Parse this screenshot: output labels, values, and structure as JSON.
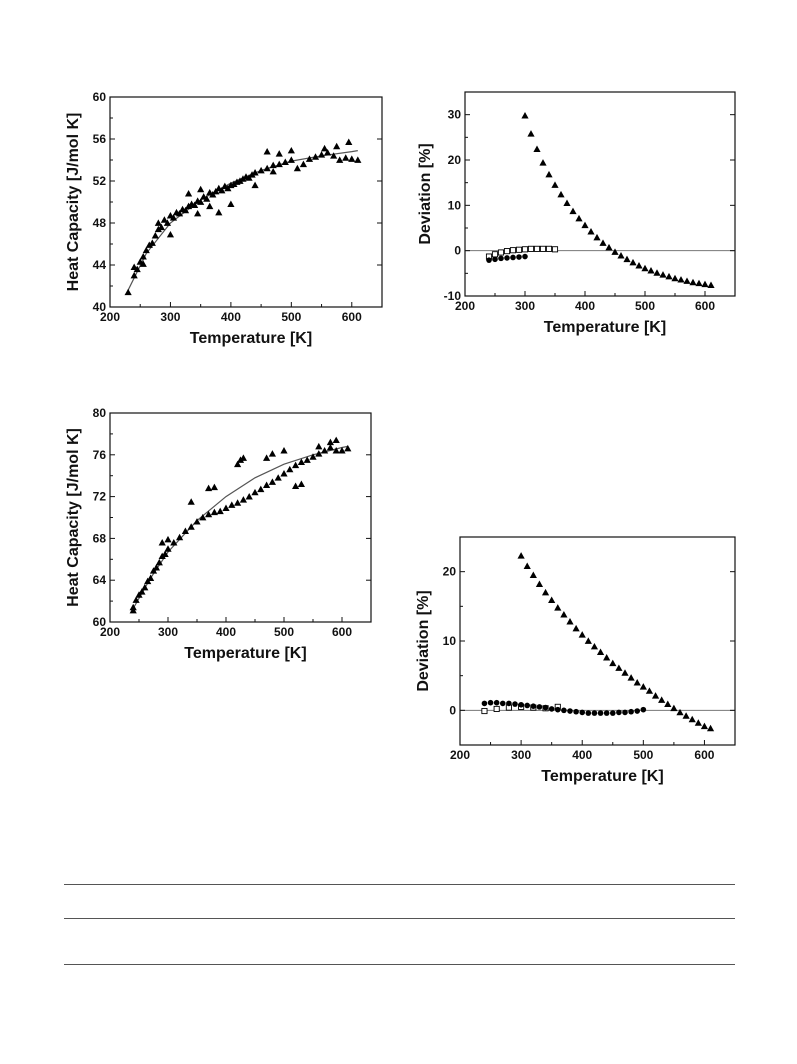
{
  "chart_data": [
    {
      "type": "scatter",
      "xlabel": "Temperature [K]",
      "ylabel": "Heat Capacity [J/mol K]",
      "xlim": [
        200,
        650
      ],
      "ylim": [
        40,
        60
      ],
      "xticks": [
        200,
        300,
        400,
        500,
        600
      ],
      "yticks": [
        40,
        44,
        48,
        52,
        56,
        60
      ],
      "series": [
        {
          "marker": "triangle",
          "x": [
            230,
            240,
            240,
            245,
            250,
            255,
            255,
            260,
            265,
            270,
            275,
            280,
            280,
            285,
            290,
            295,
            300,
            305,
            310,
            315,
            320,
            325,
            330,
            335,
            340,
            345,
            350,
            355,
            360,
            365,
            370,
            375,
            380,
            385,
            390,
            395,
            400,
            405,
            410,
            415,
            420,
            425,
            430,
            435,
            440,
            450,
            460,
            470,
            480,
            490,
            500,
            510,
            520,
            530,
            540,
            550,
            560,
            570,
            580,
            590,
            600,
            610,
            330,
            380,
            440,
            470,
            350,
            365,
            400,
            300,
            345,
            555,
            575,
            595,
            460,
            480,
            500
          ],
          "y": [
            41.4,
            43.0,
            43.8,
            43.6,
            44.3,
            44.1,
            44.8,
            45.4,
            45.9,
            46.1,
            46.8,
            47.4,
            48.0,
            47.6,
            48.3,
            48.0,
            48.7,
            48.5,
            49.0,
            48.9,
            49.3,
            49.2,
            49.6,
            49.8,
            49.7,
            50.1,
            50.0,
            50.5,
            50.3,
            50.9,
            50.7,
            51.0,
            51.3,
            51.1,
            51.5,
            51.3,
            51.6,
            51.7,
            51.9,
            52.0,
            52.2,
            52.4,
            52.3,
            52.6,
            52.8,
            53.0,
            53.2,
            53.5,
            53.6,
            53.8,
            54.0,
            53.2,
            53.6,
            54.1,
            54.3,
            54.5,
            54.7,
            54.4,
            54.0,
            54.2,
            54.1,
            54.0,
            50.8,
            49.0,
            51.6,
            52.9,
            51.2,
            49.6,
            49.8,
            46.9,
            48.9,
            55.1,
            55.3,
            55.7,
            54.8,
            54.6,
            54.9
          ]
        }
      ],
      "fit": {
        "x": [
          230,
          260,
          300,
          350,
          400,
          450,
          500,
          550,
          600,
          610
        ],
        "y": [
          41.6,
          45.1,
          48.0,
          50.2,
          51.8,
          53.0,
          53.9,
          54.4,
          54.8,
          54.9
        ]
      }
    },
    {
      "type": "scatter",
      "xlabel": "Temperature [K]",
      "ylabel": "Deviation [%]",
      "xlim": [
        200,
        650
      ],
      "ylim": [
        -10,
        35
      ],
      "xticks": [
        200,
        300,
        400,
        500,
        600
      ],
      "yticks": [
        -10,
        0,
        10,
        20,
        30
      ],
      "zero_line": true,
      "series": [
        {
          "marker": "triangle",
          "x": [
            300,
            310,
            320,
            330,
            340,
            350,
            360,
            370,
            380,
            390,
            400,
            410,
            420,
            430,
            440,
            450,
            460,
            470,
            480,
            490,
            500,
            510,
            520,
            530,
            540,
            550,
            560,
            570,
            580,
            590,
            600,
            610
          ],
          "y": [
            29.8,
            25.8,
            22.4,
            19.4,
            16.8,
            14.5,
            12.4,
            10.5,
            8.7,
            7.1,
            5.6,
            4.2,
            2.9,
            1.7,
            0.7,
            -0.3,
            -1.1,
            -1.9,
            -2.6,
            -3.3,
            -3.9,
            -4.4,
            -4.9,
            -5.3,
            -5.7,
            -6.1,
            -6.4,
            -6.7,
            -7.0,
            -7.2,
            -7.4,
            -7.6
          ]
        },
        {
          "marker": "open-square",
          "x": [
            240,
            250,
            260,
            270,
            280,
            290,
            300,
            310,
            320,
            330,
            340,
            350
          ],
          "y": [
            -1.3,
            -0.8,
            -0.4,
            -0.1,
            0.1,
            0.2,
            0.3,
            0.4,
            0.4,
            0.4,
            0.4,
            0.3
          ]
        },
        {
          "marker": "filled-circle",
          "x": [
            240,
            250,
            260,
            270,
            280,
            290,
            300
          ],
          "y": [
            -2.1,
            -1.9,
            -1.7,
            -1.6,
            -1.5,
            -1.4,
            -1.3
          ]
        }
      ]
    },
    {
      "type": "scatter",
      "xlabel": "Temperature [K]",
      "ylabel": "Heat Capacity [J/mol K]",
      "xlim": [
        200,
        650
      ],
      "ylim": [
        60,
        80
      ],
      "xticks": [
        200,
        300,
        400,
        500,
        600
      ],
      "yticks": [
        60,
        64,
        68,
        72,
        76,
        80
      ],
      "series": [
        {
          "marker": "triangle",
          "x": [
            240,
            240,
            245,
            250,
            255,
            260,
            265,
            270,
            275,
            280,
            285,
            290,
            295,
            300,
            310,
            320,
            330,
            340,
            350,
            360,
            370,
            380,
            390,
            400,
            410,
            420,
            430,
            440,
            450,
            460,
            470,
            480,
            490,
            500,
            510,
            520,
            530,
            540,
            550,
            560,
            570,
            580,
            590,
            600,
            610,
            290,
            300,
            340,
            370,
            380,
            420,
            425,
            430,
            470,
            480,
            500,
            520,
            530,
            560,
            580,
            590
          ],
          "y": [
            61.1,
            61.4,
            62.1,
            62.6,
            62.9,
            63.3,
            63.9,
            64.2,
            64.9,
            65.2,
            65.7,
            66.3,
            66.5,
            67.0,
            67.6,
            68.1,
            68.7,
            69.1,
            69.6,
            70.0,
            70.3,
            70.5,
            70.6,
            70.9,
            71.2,
            71.4,
            71.7,
            72.0,
            72.4,
            72.7,
            73.1,
            73.4,
            73.8,
            74.2,
            74.6,
            75.0,
            75.3,
            75.5,
            75.8,
            76.1,
            76.4,
            76.7,
            76.4,
            76.4,
            76.6,
            67.6,
            67.9,
            71.5,
            72.8,
            72.9,
            75.1,
            75.5,
            75.7,
            75.7,
            76.1,
            76.4,
            73.0,
            73.2,
            76.8,
            77.2,
            77.4
          ]
        }
      ],
      "fit": {
        "x": [
          240,
          270,
          300,
          350,
          400,
          450,
          500,
          550,
          600,
          610
        ],
        "y": [
          61.3,
          64.2,
          66.7,
          69.7,
          72.0,
          73.8,
          75.1,
          76.0,
          76.7,
          76.8
        ]
      }
    },
    {
      "type": "scatter",
      "xlabel": "Temperature [K]",
      "ylabel": "Deviation [%]",
      "xlim": [
        200,
        650
      ],
      "ylim": [
        -5,
        25
      ],
      "xticks": [
        200,
        300,
        400,
        500,
        600
      ],
      "yticks": [
        0,
        10,
        20
      ],
      "zero_line": true,
      "series": [
        {
          "marker": "triangle",
          "x": [
            300,
            310,
            320,
            330,
            340,
            350,
            360,
            370,
            380,
            390,
            400,
            410,
            420,
            430,
            440,
            450,
            460,
            470,
            480,
            490,
            500,
            510,
            520,
            530,
            540,
            550,
            560,
            570,
            580,
            590,
            600,
            610
          ],
          "y": [
            22.3,
            20.8,
            19.5,
            18.2,
            17.0,
            15.9,
            14.8,
            13.8,
            12.8,
            11.8,
            10.9,
            10.0,
            9.2,
            8.4,
            7.6,
            6.8,
            6.1,
            5.4,
            4.7,
            4.0,
            3.4,
            2.8,
            2.1,
            1.5,
            0.9,
            0.3,
            -0.3,
            -0.8,
            -1.3,
            -1.8,
            -2.3,
            -2.6
          ]
        },
        {
          "marker": "open-square",
          "x": [
            240,
            260,
            280,
            300,
            320,
            340,
            360
          ],
          "y": [
            -0.1,
            0.2,
            0.4,
            0.5,
            0.4,
            0.3,
            0.5
          ]
        },
        {
          "marker": "filled-circle",
          "x": [
            240,
            250,
            260,
            270,
            280,
            290,
            300,
            310,
            320,
            330,
            340,
            350,
            360,
            370,
            380,
            390,
            400,
            410,
            420,
            430,
            440,
            450,
            460,
            470,
            480,
            490,
            500
          ],
          "y": [
            1.0,
            1.1,
            1.1,
            1.0,
            1.0,
            0.9,
            0.8,
            0.7,
            0.6,
            0.5,
            0.4,
            0.2,
            0.1,
            0.0,
            -0.1,
            -0.2,
            -0.3,
            -0.4,
            -0.4,
            -0.4,
            -0.4,
            -0.4,
            -0.3,
            -0.3,
            -0.2,
            -0.1,
            0.1
          ]
        }
      ]
    }
  ]
}
